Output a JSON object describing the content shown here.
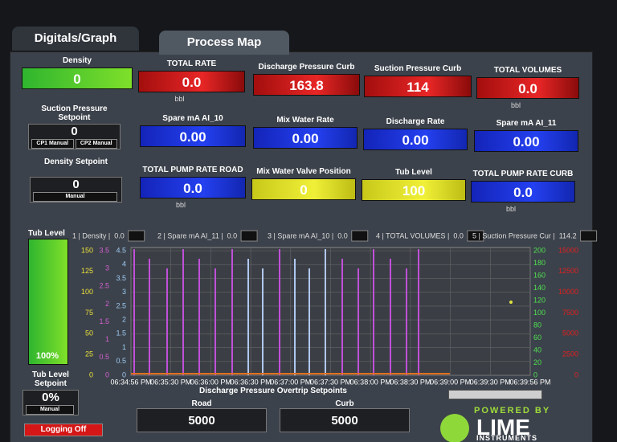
{
  "tabs": [
    "Digitals/Graph",
    "Process Map"
  ],
  "tiles": [
    {
      "label": "Density",
      "value": "0"
    },
    {
      "label": "TOTAL RATE",
      "value": "0.0",
      "unit": "bbl"
    },
    {
      "label": "Discharge Pressure Curb",
      "value": "163.8"
    },
    {
      "label": "Suction Pressure Curb",
      "value": "114"
    },
    {
      "label": "TOTAL VOLUMES",
      "value": "0.0",
      "unit": "bbl"
    },
    {
      "label": "Spare mA AI_10",
      "value": "0.00"
    },
    {
      "label": "Mix Water Rate",
      "value": "0.00"
    },
    {
      "label": "Discharge Rate",
      "value": "0.00"
    },
    {
      "label": "Spare mA AI_11",
      "value": "0.00"
    },
    {
      "label": "TOTAL PUMP RATE ROAD",
      "value": "0.0",
      "unit": "bbl"
    },
    {
      "label": "Mix Water Valve Position",
      "value": "0"
    },
    {
      "label": "Tub Level",
      "value": "100"
    },
    {
      "label": "TOTAL PUMP RATE CURB",
      "value": "0.0",
      "unit": "bbl"
    }
  ],
  "setpoints": [
    {
      "label": "Suction Pressure Setpoint",
      "value": "0",
      "buttons": [
        "CP1 Manual",
        "CP2 Manual"
      ]
    },
    {
      "label": "Density Setpoint",
      "value": "0",
      "buttons": [
        "Manual"
      ]
    },
    {
      "label": "Tub Level Setpoint",
      "value": "0%",
      "buttons": [
        "Manual"
      ]
    }
  ],
  "tub_gauge": {
    "label": "Tub Level",
    "value": "100%"
  },
  "trend": {
    "legend": [
      {
        "name": "1 | Density |",
        "value": "0.0"
      },
      {
        "name": "2 | Spare mA AI_11 |",
        "value": "0.0"
      },
      {
        "name": "3 | Spare mA AI_10 |",
        "value": "0.0"
      },
      {
        "name": "4 | TOTAL VOLUMES |",
        "value": "0.0"
      },
      {
        "name": "5 | Suction Pressure Cur |",
        "value": "114.2"
      }
    ],
    "axis_yellow": [
      "150",
      "125",
      "100",
      "75",
      "50",
      "25",
      "0"
    ],
    "axis_pink": [
      "3.5",
      "3",
      "2.5",
      "2",
      "1.5",
      "1",
      "0.5",
      "0"
    ],
    "axis_blue": [
      "4.5",
      "4",
      "3.5",
      "3",
      "2.5",
      "2",
      "1.5",
      "1",
      "0.5",
      "0"
    ],
    "axis_green": [
      "200",
      "180",
      "160",
      "140",
      "120",
      "100",
      "80",
      "60",
      "40",
      "20",
      "0"
    ],
    "axis_red": [
      "15000",
      "12500",
      "10000",
      "7500",
      "5000",
      "2500",
      "0"
    ],
    "x_labels": [
      "06:34:56 PM",
      "06:35:30 PM",
      "06:36:00 PM",
      "06:36:30 PM",
      "06:37:00 PM",
      "06:37:30 PM",
      "06:38:00 PM",
      "06:38:30 PM",
      "06:39:00 PM",
      "06:39:30 PM",
      "06:39:56 PM"
    ]
  },
  "overtrip": {
    "title": "Discharge Pressure Overtrip Setpoints",
    "road_label": "Road",
    "road_value": "5000",
    "curb_label": "Curb",
    "curb_value": "5000"
  },
  "logging_button": "Logging Off",
  "logo": {
    "tagline": "POWERED BY",
    "name": "LIME",
    "sub": "INSTRUMENTS"
  }
}
